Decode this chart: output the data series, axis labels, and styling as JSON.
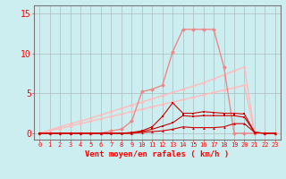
{
  "x": [
    0,
    1,
    2,
    3,
    4,
    5,
    6,
    7,
    8,
    9,
    10,
    11,
    12,
    13,
    14,
    15,
    16,
    17,
    18,
    19,
    20,
    21,
    22,
    23
  ],
  "line_peak": [
    0,
    0,
    0,
    0,
    0,
    0,
    0,
    0.3,
    0.5,
    1.5,
    5.2,
    5.5,
    6.0,
    10.2,
    13.0,
    13.0,
    13.0,
    13.0,
    8.3,
    0,
    0,
    0,
    0,
    0
  ],
  "line_diag1": [
    0,
    0.3,
    0.6,
    0.9,
    1.2,
    1.5,
    1.8,
    2.1,
    2.4,
    2.7,
    3.0,
    3.3,
    3.6,
    3.9,
    4.2,
    4.5,
    4.8,
    5.1,
    5.4,
    5.7,
    6.0,
    0,
    0,
    0
  ],
  "line_diag2": [
    0,
    0.4,
    0.8,
    1.2,
    1.5,
    1.9,
    2.3,
    2.7,
    3.1,
    3.5,
    3.9,
    4.3,
    4.7,
    5.1,
    5.5,
    5.9,
    6.3,
    6.8,
    7.3,
    7.8,
    8.3,
    0,
    0,
    0
  ],
  "line_dark1": [
    0,
    0,
    0,
    0,
    0,
    0,
    0,
    0,
    0,
    0.1,
    0.3,
    0.8,
    2.1,
    3.8,
    2.5,
    2.5,
    2.7,
    2.6,
    2.5,
    2.5,
    2.4,
    0.1,
    0,
    0
  ],
  "line_dark2": [
    0,
    0,
    0,
    0,
    0,
    0,
    0,
    0,
    0,
    0,
    0.2,
    0.5,
    0.9,
    1.3,
    2.2,
    2.1,
    2.2,
    2.2,
    2.2,
    2.2,
    2.0,
    0.1,
    0,
    0
  ],
  "line_dark3": [
    0,
    0,
    0,
    0,
    0,
    0,
    0,
    0,
    0,
    0,
    0.1,
    0.2,
    0.3,
    0.5,
    0.8,
    0.7,
    0.7,
    0.7,
    0.8,
    1.2,
    1.2,
    0.1,
    0,
    0
  ],
  "bg_color": "#cceef0",
  "grid_color": "#aabbbb",
  "color_lightest": "#ffbbbb",
  "color_light": "#ee8888",
  "color_medium": "#dd5555",
  "color_dark": "#cc0000",
  "xlabel": "Vent moyen/en rafales ( km/h )",
  "ylabel_ticks": [
    0,
    5,
    10,
    15
  ],
  "xlim": [
    -0.5,
    23.5
  ],
  "ylim": [
    -0.8,
    16
  ]
}
